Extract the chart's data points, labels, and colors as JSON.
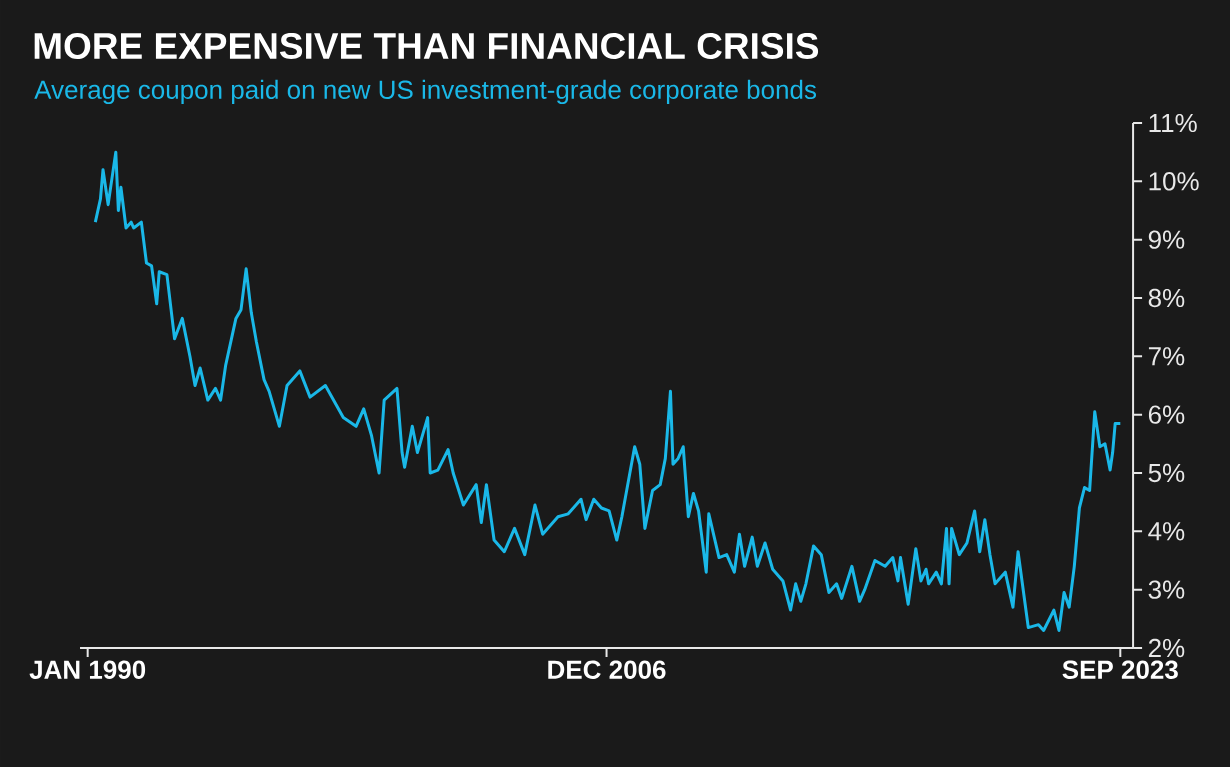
{
  "chart_data": {
    "type": "line",
    "title": "MORE EXPENSIVE THAN FINANCIAL CRISIS",
    "subtitle": "Average coupon paid on new US investment-grade corporate bonds",
    "color": "#1ab8e8",
    "x": [
      "1990-04",
      "1990-06",
      "1990-07",
      "1990-09",
      "1990-12",
      "1991-01",
      "1991-02",
      "1991-04",
      "1991-06",
      "1991-07",
      "1991-10",
      "1991-12",
      "1992-02",
      "1992-04",
      "1992-05",
      "1992-08",
      "1992-11",
      "1993-02",
      "1993-05",
      "1993-07",
      "1993-09",
      "1993-12",
      "1994-03",
      "1994-05",
      "1994-07",
      "1994-11",
      "1995-01",
      "1995-03",
      "1995-05",
      "1995-07",
      "1995-10",
      "1995-12",
      "1996-04",
      "1996-07",
      "1996-12",
      "1997-04",
      "1997-10",
      "1998-05",
      "1998-10",
      "1999-01",
      "1999-04",
      "1999-07",
      "1999-09",
      "2000-02",
      "2000-04",
      "2000-05",
      "2000-08",
      "2000-10",
      "2001-02",
      "2001-03",
      "2001-06",
      "2001-10",
      "2001-12",
      "2002-04",
      "2002-09",
      "2002-11",
      "2003-01",
      "2003-04",
      "2003-08",
      "2003-12",
      "2004-04",
      "2004-08",
      "2004-11",
      "2005-05",
      "2005-09",
      "2006-02",
      "2006-04",
      "2006-07",
      "2006-10",
      "2007-01",
      "2007-04",
      "2007-06",
      "2007-11",
      "2008-01",
      "2008-03",
      "2008-06",
      "2008-09",
      "2008-11",
      "2009-01",
      "2009-02",
      "2009-04",
      "2009-06",
      "2009-08",
      "2009-10",
      "2009-12",
      "2010-03",
      "2010-04",
      "2010-08",
      "2010-11",
      "2011-02",
      "2011-04",
      "2011-06",
      "2011-09",
      "2011-11",
      "2012-02",
      "2012-05",
      "2012-09",
      "2012-12",
      "2013-02",
      "2013-04",
      "2013-06",
      "2013-09",
      "2013-12",
      "2014-03",
      "2014-06",
      "2014-08",
      "2014-12",
      "2015-03",
      "2015-05",
      "2015-09",
      "2016-01",
      "2016-04",
      "2016-06",
      "2016-07",
      "2016-10",
      "2017-01",
      "2017-03",
      "2017-05",
      "2017-06",
      "2017-09",
      "2017-11",
      "2018-01",
      "2018-02",
      "2018-03",
      "2018-06",
      "2018-09",
      "2018-12",
      "2019-02",
      "2019-04",
      "2019-06",
      "2019-08",
      "2019-12",
      "2020-03",
      "2020-05",
      "2020-09",
      "2021-01",
      "2021-03",
      "2021-07",
      "2021-09",
      "2021-11",
      "2022-01",
      "2022-03",
      "2022-05",
      "2022-07",
      "2022-09",
      "2022-11",
      "2023-01",
      "2023-03",
      "2023-05",
      "2023-06",
      "2023-07",
      "2023-09"
    ],
    "values": [
      9.3,
      9.7,
      10.2,
      9.6,
      10.5,
      9.5,
      9.9,
      9.2,
      9.3,
      9.2,
      9.3,
      8.6,
      8.55,
      7.9,
      8.45,
      8.4,
      7.3,
      7.65,
      7.0,
      6.5,
      6.8,
      6.25,
      6.45,
      6.25,
      6.85,
      7.65,
      7.8,
      8.5,
      7.75,
      7.25,
      6.6,
      6.4,
      5.8,
      6.5,
      6.75,
      6.3,
      6.5,
      5.95,
      5.8,
      6.1,
      5.65,
      5.0,
      6.25,
      6.45,
      5.35,
      5.1,
      5.8,
      5.35,
      5.95,
      5.0,
      5.05,
      5.4,
      5.0,
      4.45,
      4.8,
      4.15,
      4.8,
      3.85,
      3.65,
      4.05,
      3.6,
      4.45,
      3.95,
      4.25,
      4.3,
      4.55,
      4.2,
      4.55,
      4.4,
      4.35,
      3.85,
      4.25,
      5.45,
      5.15,
      4.05,
      4.7,
      4.8,
      5.25,
      6.4,
      5.15,
      5.25,
      5.45,
      4.25,
      4.65,
      4.35,
      3.3,
      4.3,
      3.55,
      3.6,
      3.3,
      3.95,
      3.4,
      3.9,
      3.4,
      3.8,
      3.35,
      3.15,
      2.65,
      3.1,
      2.8,
      3.1,
      3.75,
      3.6,
      2.95,
      3.1,
      2.85,
      3.4,
      2.8,
      3.0,
      3.5,
      3.4,
      3.55,
      3.15,
      3.55,
      2.75,
      3.7,
      3.15,
      3.35,
      3.1,
      3.3,
      3.1,
      4.05,
      3.1,
      4.05,
      3.6,
      3.8,
      4.35,
      3.65,
      4.2,
      3.6,
      3.1,
      3.3,
      2.7,
      3.65,
      2.35,
      2.4,
      2.3,
      2.65,
      2.3,
      2.95,
      2.7,
      3.4,
      4.4,
      4.75,
      4.7,
      6.05,
      5.45,
      5.5,
      5.05,
      5.35,
      5.85,
      5.85
    ],
    "xlim": [
      "1989-10",
      "2024-02"
    ],
    "xticks": [
      {
        "value": "1990-01",
        "label": "JAN 1990"
      },
      {
        "value": "2006-12",
        "label": "DEC 2006"
      },
      {
        "value": "2023-09",
        "label": "SEP 2023"
      }
    ],
    "ylim": [
      2,
      11
    ],
    "yticks": [
      {
        "value": 2,
        "label": "2%"
      },
      {
        "value": 3,
        "label": "3%"
      },
      {
        "value": 4,
        "label": "4%"
      },
      {
        "value": 5,
        "label": "5%"
      },
      {
        "value": 6,
        "label": "6%"
      },
      {
        "value": 7,
        "label": "7%"
      },
      {
        "value": 8,
        "label": "8%"
      },
      {
        "value": 9,
        "label": "9%"
      },
      {
        "value": 10,
        "label": "10%"
      },
      {
        "value": 11,
        "label": "11%"
      }
    ]
  }
}
